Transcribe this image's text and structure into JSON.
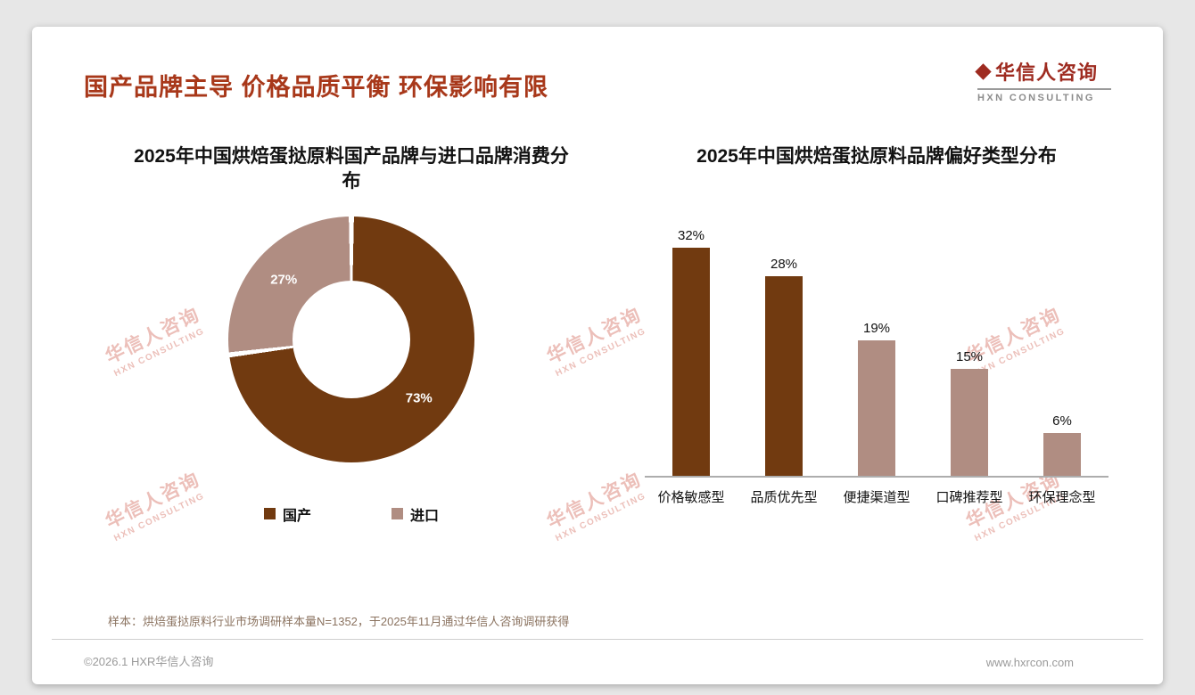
{
  "page": {
    "title": "国产品牌主导 价格品质平衡 环保影响有限",
    "logo": {
      "name": "华信人咨询",
      "tagline": "HXN CONSULTING"
    },
    "footnote": "样本：烘焙蛋挞原料行业市场调研样本量N=1352，于2025年11月通过华信人咨询调研获得",
    "footer": {
      "copyright": "©2026.1 HXR华信人咨询",
      "website": "www.hxrcon.com"
    }
  },
  "watermark": {
    "line1": "华信人咨询",
    "line2": "HXN CONSULTING"
  },
  "colors": {
    "title_accent": "#A8381A",
    "logo_red": "#9E2B20",
    "brand_dark_brown": "#713A10",
    "brand_mauve": "#B08D82"
  },
  "chart_data": [
    {
      "type": "pie",
      "donut": true,
      "title": "2025年中国烘焙蛋挞原料国产品牌与进口品牌消费分布",
      "labels": [
        "国产",
        "进口"
      ],
      "values": [
        73,
        27
      ],
      "unit": "%",
      "colors": [
        "#713A10",
        "#B08D82"
      ],
      "value_label_color": "#ffffff",
      "legend_position": "bottom"
    },
    {
      "type": "bar",
      "title": "2025年中国烘焙蛋挞原料品牌偏好类型分布",
      "categories": [
        "价格敏感型",
        "品质优先型",
        "便捷渠道型",
        "口碑推荐型",
        "环保理念型"
      ],
      "values": [
        32,
        28,
        19,
        15,
        6
      ],
      "unit": "%",
      "bar_colors": [
        "#713A10",
        "#713A10",
        "#B08D82",
        "#B08D82",
        "#B08D82"
      ],
      "ylim": [
        0,
        35
      ],
      "grid": false,
      "value_labels": "above",
      "legend_position": "none"
    }
  ]
}
